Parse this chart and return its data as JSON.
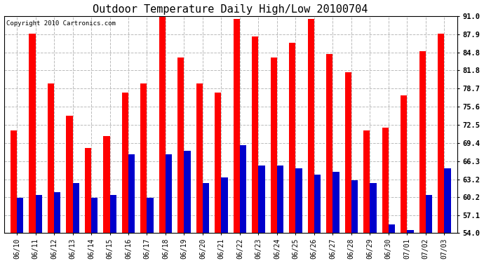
{
  "title": "Outdoor Temperature Daily High/Low 20100704",
  "copyright": "Copyright 2010 Cartronics.com",
  "dates": [
    "06/10",
    "06/11",
    "06/12",
    "06/13",
    "06/14",
    "06/15",
    "06/16",
    "06/17",
    "06/18",
    "06/19",
    "06/20",
    "06/21",
    "06/22",
    "06/23",
    "06/24",
    "06/25",
    "06/26",
    "06/27",
    "06/28",
    "06/29",
    "06/30",
    "07/01",
    "07/02",
    "07/03"
  ],
  "highs": [
    71.5,
    88.0,
    79.5,
    74.0,
    68.5,
    70.5,
    78.0,
    79.5,
    91.0,
    84.0,
    79.5,
    78.0,
    90.5,
    87.5,
    84.0,
    86.5,
    90.5,
    84.5,
    81.5,
    71.5,
    72.0,
    77.5,
    85.0,
    88.0
  ],
  "lows": [
    60.0,
    60.5,
    61.0,
    62.5,
    60.0,
    60.5,
    67.5,
    60.0,
    67.5,
    68.0,
    62.5,
    63.5,
    69.0,
    65.5,
    65.5,
    65.0,
    64.0,
    64.5,
    63.0,
    62.5,
    55.5,
    54.5,
    60.5,
    65.0
  ],
  "high_color": "#ff0000",
  "low_color": "#0000cc",
  "bg_color": "#ffffff",
  "yticks": [
    54.0,
    57.1,
    60.2,
    63.2,
    66.3,
    69.4,
    72.5,
    75.6,
    78.7,
    81.8,
    84.8,
    87.9,
    91.0
  ],
  "ymin": 54.0,
  "ymax": 91.0,
  "bar_width": 0.35,
  "title_fontsize": 11,
  "tick_fontsize": 7.5,
  "xtick_fontsize": 7,
  "grid_color": "#bbbbbb",
  "grid_style": "--"
}
